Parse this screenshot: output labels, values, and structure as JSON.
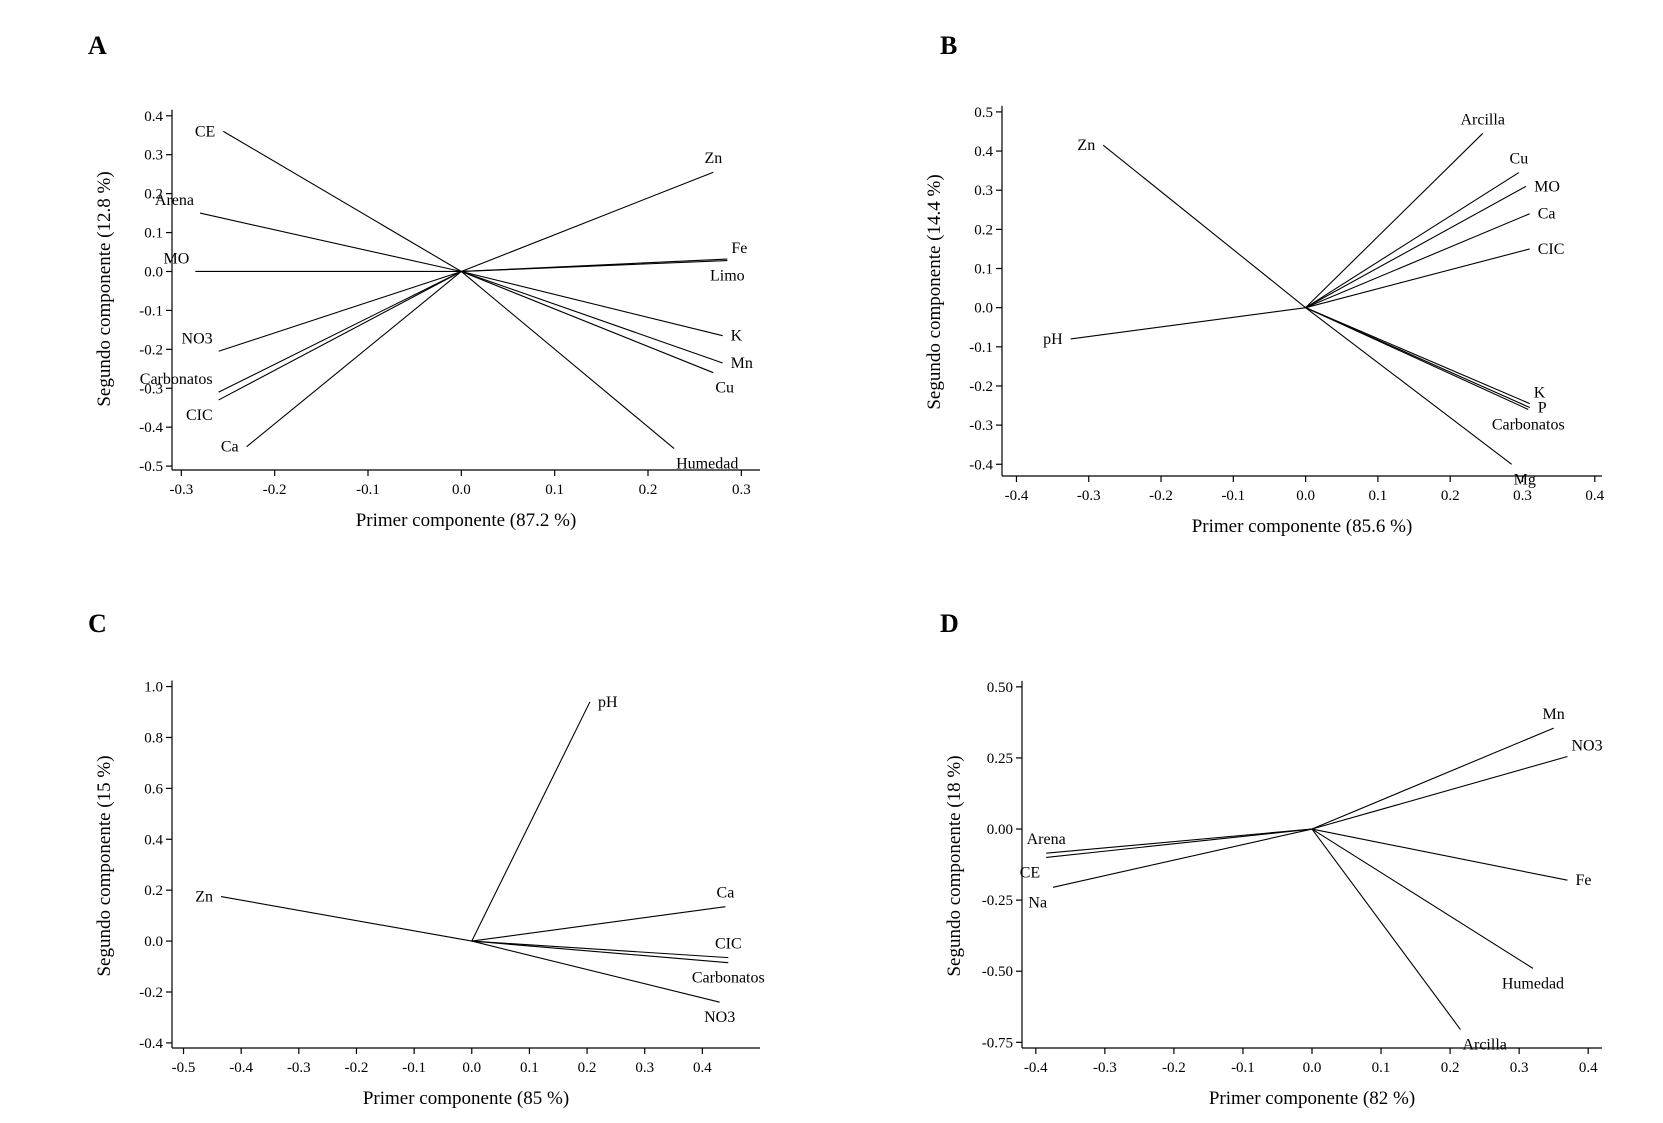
{
  "chart_data": [
    {
      "type": "biplot",
      "panel": "A",
      "xlabel": "Primer componente (87.2 %)",
      "ylabel": "Segundo componente (12.8 %)",
      "xlim": [
        -0.31,
        0.32
      ],
      "ylim": [
        -0.51,
        0.42
      ],
      "xticks": [
        -0.3,
        -0.2,
        -0.1,
        0.0,
        0.1,
        0.2,
        0.3
      ],
      "xtick_labels": [
        "-0.3",
        "-0.2",
        "-0.1",
        "0.0",
        "0.1",
        "0.2",
        "0.3"
      ],
      "yticks": [
        0.4,
        0.3,
        0.2,
        0.1,
        0.0,
        -0.1,
        -0.2,
        -0.3,
        -0.4,
        -0.5
      ],
      "ytick_labels": [
        "0.4",
        "0.3",
        "0.2",
        "0.1",
        "0.0",
        "-0.1",
        "-0.2",
        "-0.3",
        "-0.4",
        "-0.5"
      ],
      "vectors": [
        {
          "name": "CE",
          "x": -0.255,
          "y": 0.36,
          "label_pos": "left"
        },
        {
          "name": "Arena",
          "x": -0.28,
          "y": 0.15,
          "label_pos": "above-left"
        },
        {
          "name": "MO",
          "x": -0.285,
          "y": 0.0,
          "label_pos": "above-left"
        },
        {
          "name": "NO3",
          "x": -0.26,
          "y": -0.205,
          "label_pos": "above-left"
        },
        {
          "name": "Carbonatos",
          "x": -0.26,
          "y": -0.31,
          "label_pos": "above-left"
        },
        {
          "name": "CIC",
          "x": -0.26,
          "y": -0.33,
          "label_pos": "below-left"
        },
        {
          "name": "Ca",
          "x": -0.23,
          "y": -0.45,
          "label_pos": "left"
        },
        {
          "name": "Zn",
          "x": 0.27,
          "y": 0.255,
          "label_pos": "above"
        },
        {
          "name": "Fe",
          "x": 0.285,
          "y": 0.032,
          "label_pos": "above-right"
        },
        {
          "name": "Limo",
          "x": 0.285,
          "y": 0.028,
          "label_pos": "below"
        },
        {
          "name": "K",
          "x": 0.28,
          "y": -0.165,
          "label_pos": "right"
        },
        {
          "name": "Mn",
          "x": 0.28,
          "y": -0.235,
          "label_pos": "right"
        },
        {
          "name": "Cu",
          "x": 0.27,
          "y": -0.26,
          "label_pos": "below-right"
        },
        {
          "name": "Humedad",
          "x": 0.228,
          "y": -0.455,
          "label_pos": "below-right"
        }
      ]
    },
    {
      "type": "biplot",
      "panel": "B",
      "xlabel": "Primer componente (85.6 %)",
      "ylabel": "Segundo componente (14.4 %)",
      "xlim": [
        -0.42,
        0.41
      ],
      "ylim": [
        -0.43,
        0.51
      ],
      "xticks": [
        -0.4,
        -0.3,
        -0.2,
        -0.1,
        0.0,
        0.1,
        0.2,
        0.3,
        0.4
      ],
      "xtick_labels": [
        "-0.4",
        "-0.3",
        "-0.2",
        "-0.1",
        "0.0",
        "0.1",
        "0.2",
        "0.3",
        "0.4"
      ],
      "yticks": [
        0.5,
        0.4,
        0.3,
        0.2,
        0.1,
        0.0,
        -0.1,
        -0.2,
        -0.3,
        -0.4
      ],
      "ytick_labels": [
        "0.5",
        "0.4",
        "0.3",
        "0.2",
        "0.1",
        "0.0",
        "-0.1",
        "-0.2",
        "-0.3",
        "-0.4"
      ],
      "vectors": [
        {
          "name": "Zn",
          "x": -0.28,
          "y": 0.415,
          "label_pos": "left"
        },
        {
          "name": "pH",
          "x": -0.325,
          "y": -0.08,
          "label_pos": "left"
        },
        {
          "name": "Arcilla",
          "x": 0.245,
          "y": 0.445,
          "label_pos": "above"
        },
        {
          "name": "Cu",
          "x": 0.295,
          "y": 0.345,
          "label_pos": "above"
        },
        {
          "name": "MO",
          "x": 0.305,
          "y": 0.31,
          "label_pos": "right"
        },
        {
          "name": "Ca",
          "x": 0.31,
          "y": 0.24,
          "label_pos": "right"
        },
        {
          "name": "CIC",
          "x": 0.31,
          "y": 0.15,
          "label_pos": "right"
        },
        {
          "name": "K",
          "x": 0.31,
          "y": -0.245,
          "label_pos": "above-right"
        },
        {
          "name": "P",
          "x": 0.31,
          "y": -0.255,
          "label_pos": "right"
        },
        {
          "name": "Carbonatos",
          "x": 0.308,
          "y": -0.26,
          "label_pos": "below"
        },
        {
          "name": "Mg",
          "x": 0.285,
          "y": -0.4,
          "label_pos": "below-right"
        }
      ]
    },
    {
      "type": "biplot",
      "panel": "C",
      "xlabel": "Primer componente (85 %)",
      "ylabel": "Segundo componente (15 %)",
      "xlim": [
        -0.52,
        0.5
      ],
      "ylim": [
        -0.42,
        1.01
      ],
      "xticks": [
        -0.5,
        -0.4,
        -0.3,
        -0.2,
        -0.1,
        0.0,
        0.1,
        0.2,
        0.3,
        0.4
      ],
      "xtick_labels": [
        "-0.5",
        "-0.4",
        "-0.3",
        "-0.2",
        "-0.1",
        "0.0",
        "0.1",
        "0.2",
        "0.3",
        "0.4"
      ],
      "yticks": [
        1.0,
        0.8,
        0.6,
        0.4,
        0.2,
        0.0,
        -0.2,
        -0.4
      ],
      "ytick_labels": [
        "1.0",
        "0.8",
        "0.6",
        "0.4",
        "0.2",
        "0.0",
        "-0.2",
        "-0.4"
      ],
      "vectors": [
        {
          "name": "pH",
          "x": 0.205,
          "y": 0.94,
          "label_pos": "right"
        },
        {
          "name": "Zn",
          "x": -0.435,
          "y": 0.175,
          "label_pos": "left"
        },
        {
          "name": "Ca",
          "x": 0.44,
          "y": 0.135,
          "label_pos": "above"
        },
        {
          "name": "CIC",
          "x": 0.445,
          "y": -0.065,
          "label_pos": "above"
        },
        {
          "name": "Carbonatos",
          "x": 0.445,
          "y": -0.085,
          "label_pos": "below"
        },
        {
          "name": "NO3",
          "x": 0.43,
          "y": -0.24,
          "label_pos": "below"
        }
      ]
    },
    {
      "type": "biplot",
      "panel": "D",
      "xlabel": "Primer componente (82 %)",
      "ylabel": "Segundo componente (18 %)",
      "xlim": [
        -0.42,
        0.42
      ],
      "ylim": [
        -0.77,
        0.51
      ],
      "xticks": [
        -0.4,
        -0.3,
        -0.2,
        -0.1,
        0.0,
        0.1,
        0.2,
        0.3,
        0.4
      ],
      "xtick_labels": [
        "-0.4",
        "-0.3",
        "-0.2",
        "-0.1",
        "0.0",
        "0.1",
        "0.2",
        "0.3",
        "0.4"
      ],
      "yticks": [
        0.5,
        0.25,
        0.0,
        -0.25,
        -0.5,
        -0.75
      ],
      "ytick_labels": [
        "0.50",
        "0.25",
        "0.00",
        "-0.25",
        "-0.50",
        "-0.75"
      ],
      "vectors": [
        {
          "name": "Mn",
          "x": 0.35,
          "y": 0.355,
          "label_pos": "above"
        },
        {
          "name": "NO3",
          "x": 0.37,
          "y": 0.255,
          "label_pos": "above-right"
        },
        {
          "name": "Fe",
          "x": 0.37,
          "y": -0.18,
          "label_pos": "right"
        },
        {
          "name": "Humedad",
          "x": 0.32,
          "y": -0.49,
          "label_pos": "below"
        },
        {
          "name": "Arcilla",
          "x": 0.215,
          "y": -0.705,
          "label_pos": "below-right"
        },
        {
          "name": "Arena",
          "x": -0.385,
          "y": -0.085,
          "label_pos": "above"
        },
        {
          "name": "CE",
          "x": -0.385,
          "y": -0.1,
          "label_pos": "below-left"
        },
        {
          "name": "Na",
          "x": -0.375,
          "y": -0.205,
          "label_pos": "below-left"
        }
      ]
    }
  ]
}
